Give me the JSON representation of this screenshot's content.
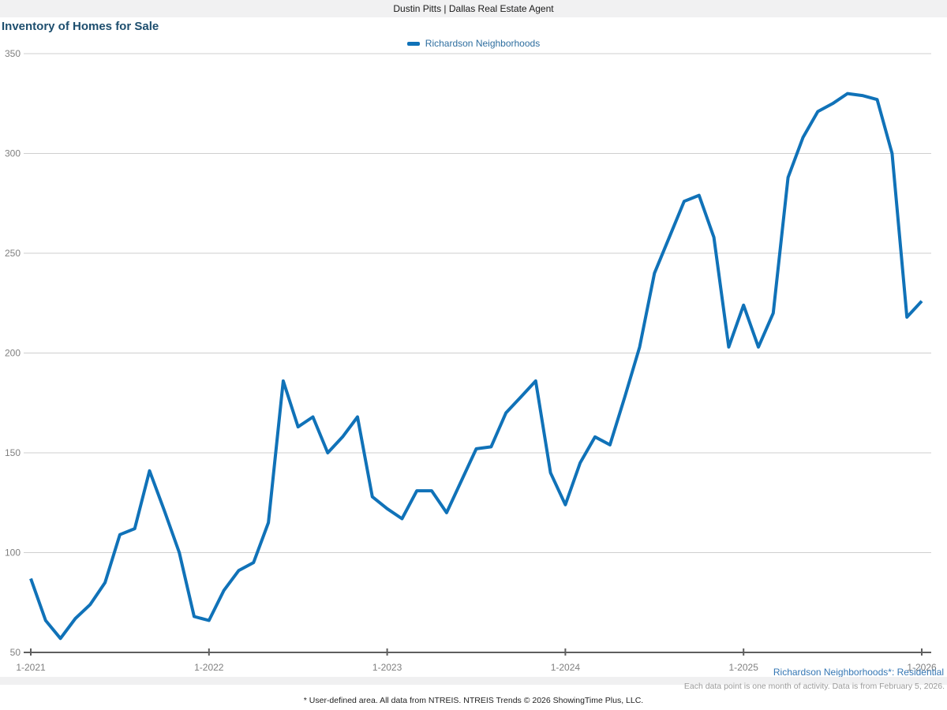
{
  "header": {
    "title": "Dustin Pitts | Dallas Real Estate Agent"
  },
  "page_title": "Inventory of Homes for Sale",
  "legend": {
    "label": "Richardson Neighborhoods"
  },
  "footnotes": {
    "series_note": "Richardson Neighborhoods*: Residential",
    "data_note": "Each data point is one month of activity. Data is from February 5, 2026.",
    "attribution": "* User-defined area. All data from NTREIS. NTREIS Trends © 2026 ShowingTime Plus, LLC."
  },
  "colors": {
    "line": "#1072b8",
    "title_text": "#1d4e6e",
    "legend_text": "#2e6e9f",
    "axis_label": "#7f7f7f",
    "gridline": "#cfcfcf",
    "axis": "#5f5f5f",
    "note_blue": "#3577b4",
    "note_gray": "#9a9a9a",
    "header_bg": "#f1f1f2"
  },
  "chart_data": {
    "type": "line",
    "title": "Inventory of Homes for Sale",
    "xlabel": "",
    "ylabel": "",
    "ylim": [
      50,
      350
    ],
    "y_ticks": [
      50,
      100,
      150,
      200,
      250,
      300,
      350
    ],
    "x_tick_labels": [
      "1-2021",
      "1-2022",
      "1-2023",
      "1-2024",
      "1-2025",
      "1-2026"
    ],
    "x_frequency": "monthly",
    "grid": "horizontal",
    "legend_position": "top-center",
    "series": [
      {
        "name": "Richardson Neighborhoods",
        "color": "#1072b8",
        "start_month": "1-2021",
        "values": [
          87,
          66,
          57,
          67,
          74,
          85,
          109,
          112,
          141,
          121,
          100,
          68,
          66,
          81,
          91,
          95,
          115,
          186,
          163,
          168,
          150,
          158,
          168,
          128,
          122,
          117,
          131,
          131,
          120,
          136,
          152,
          153,
          170,
          178,
          186,
          140,
          124,
          145,
          158,
          154,
          178,
          203,
          240,
          258,
          276,
          279,
          258,
          203,
          224,
          203,
          220,
          288,
          308,
          321,
          325,
          330,
          329,
          327,
          300,
          218,
          226
        ]
      }
    ]
  }
}
